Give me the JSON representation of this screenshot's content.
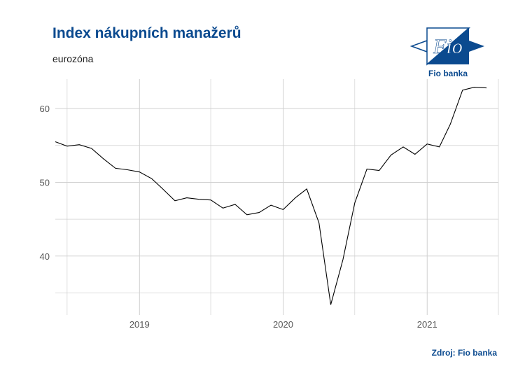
{
  "header": {
    "title": "Index nákupních manažerů",
    "subtitle": "eurozóna"
  },
  "logo": {
    "text": "Fio",
    "brand": "Fio banka",
    "color": "#0b4a8f"
  },
  "footer": {
    "source": "Zdroj: Fio banka"
  },
  "chart_data": {
    "type": "line",
    "title": "Index nákupních manažerů",
    "subtitle": "eurozóna",
    "xlabel": "",
    "ylabel": "",
    "xlim": [
      "2018-06-01",
      "2021-07-01"
    ],
    "ylim": [
      32,
      64
    ],
    "x_ticks": [
      "2019",
      "2020",
      "2021"
    ],
    "y_ticks": [
      40,
      50,
      60
    ],
    "grid": true,
    "line_color": "#000000",
    "x": [
      "2018-06",
      "2018-07",
      "2018-08",
      "2018-09",
      "2018-10",
      "2018-11",
      "2018-12",
      "2019-01",
      "2019-02",
      "2019-03",
      "2019-04",
      "2019-05",
      "2019-06",
      "2019-07",
      "2019-08",
      "2019-09",
      "2019-10",
      "2019-11",
      "2019-12",
      "2020-01",
      "2020-02",
      "2020-03",
      "2020-04",
      "2020-05",
      "2020-06",
      "2020-07",
      "2020-08",
      "2020-09",
      "2020-10",
      "2020-11",
      "2020-12",
      "2021-01",
      "2021-02",
      "2021-03",
      "2021-04",
      "2021-05",
      "2021-06"
    ],
    "values": [
      55.5,
      54.9,
      55.1,
      54.6,
      53.2,
      51.9,
      51.7,
      51.4,
      50.5,
      49.1,
      47.5,
      47.9,
      47.7,
      47.6,
      46.5,
      47.0,
      45.6,
      45.9,
      46.9,
      46.3,
      47.9,
      49.1,
      44.5,
      33.4,
      39.5,
      47.2,
      51.8,
      51.6,
      53.7,
      54.8,
      53.8,
      55.2,
      54.8,
      57.9,
      62.5,
      62.9,
      62.8
    ]
  }
}
